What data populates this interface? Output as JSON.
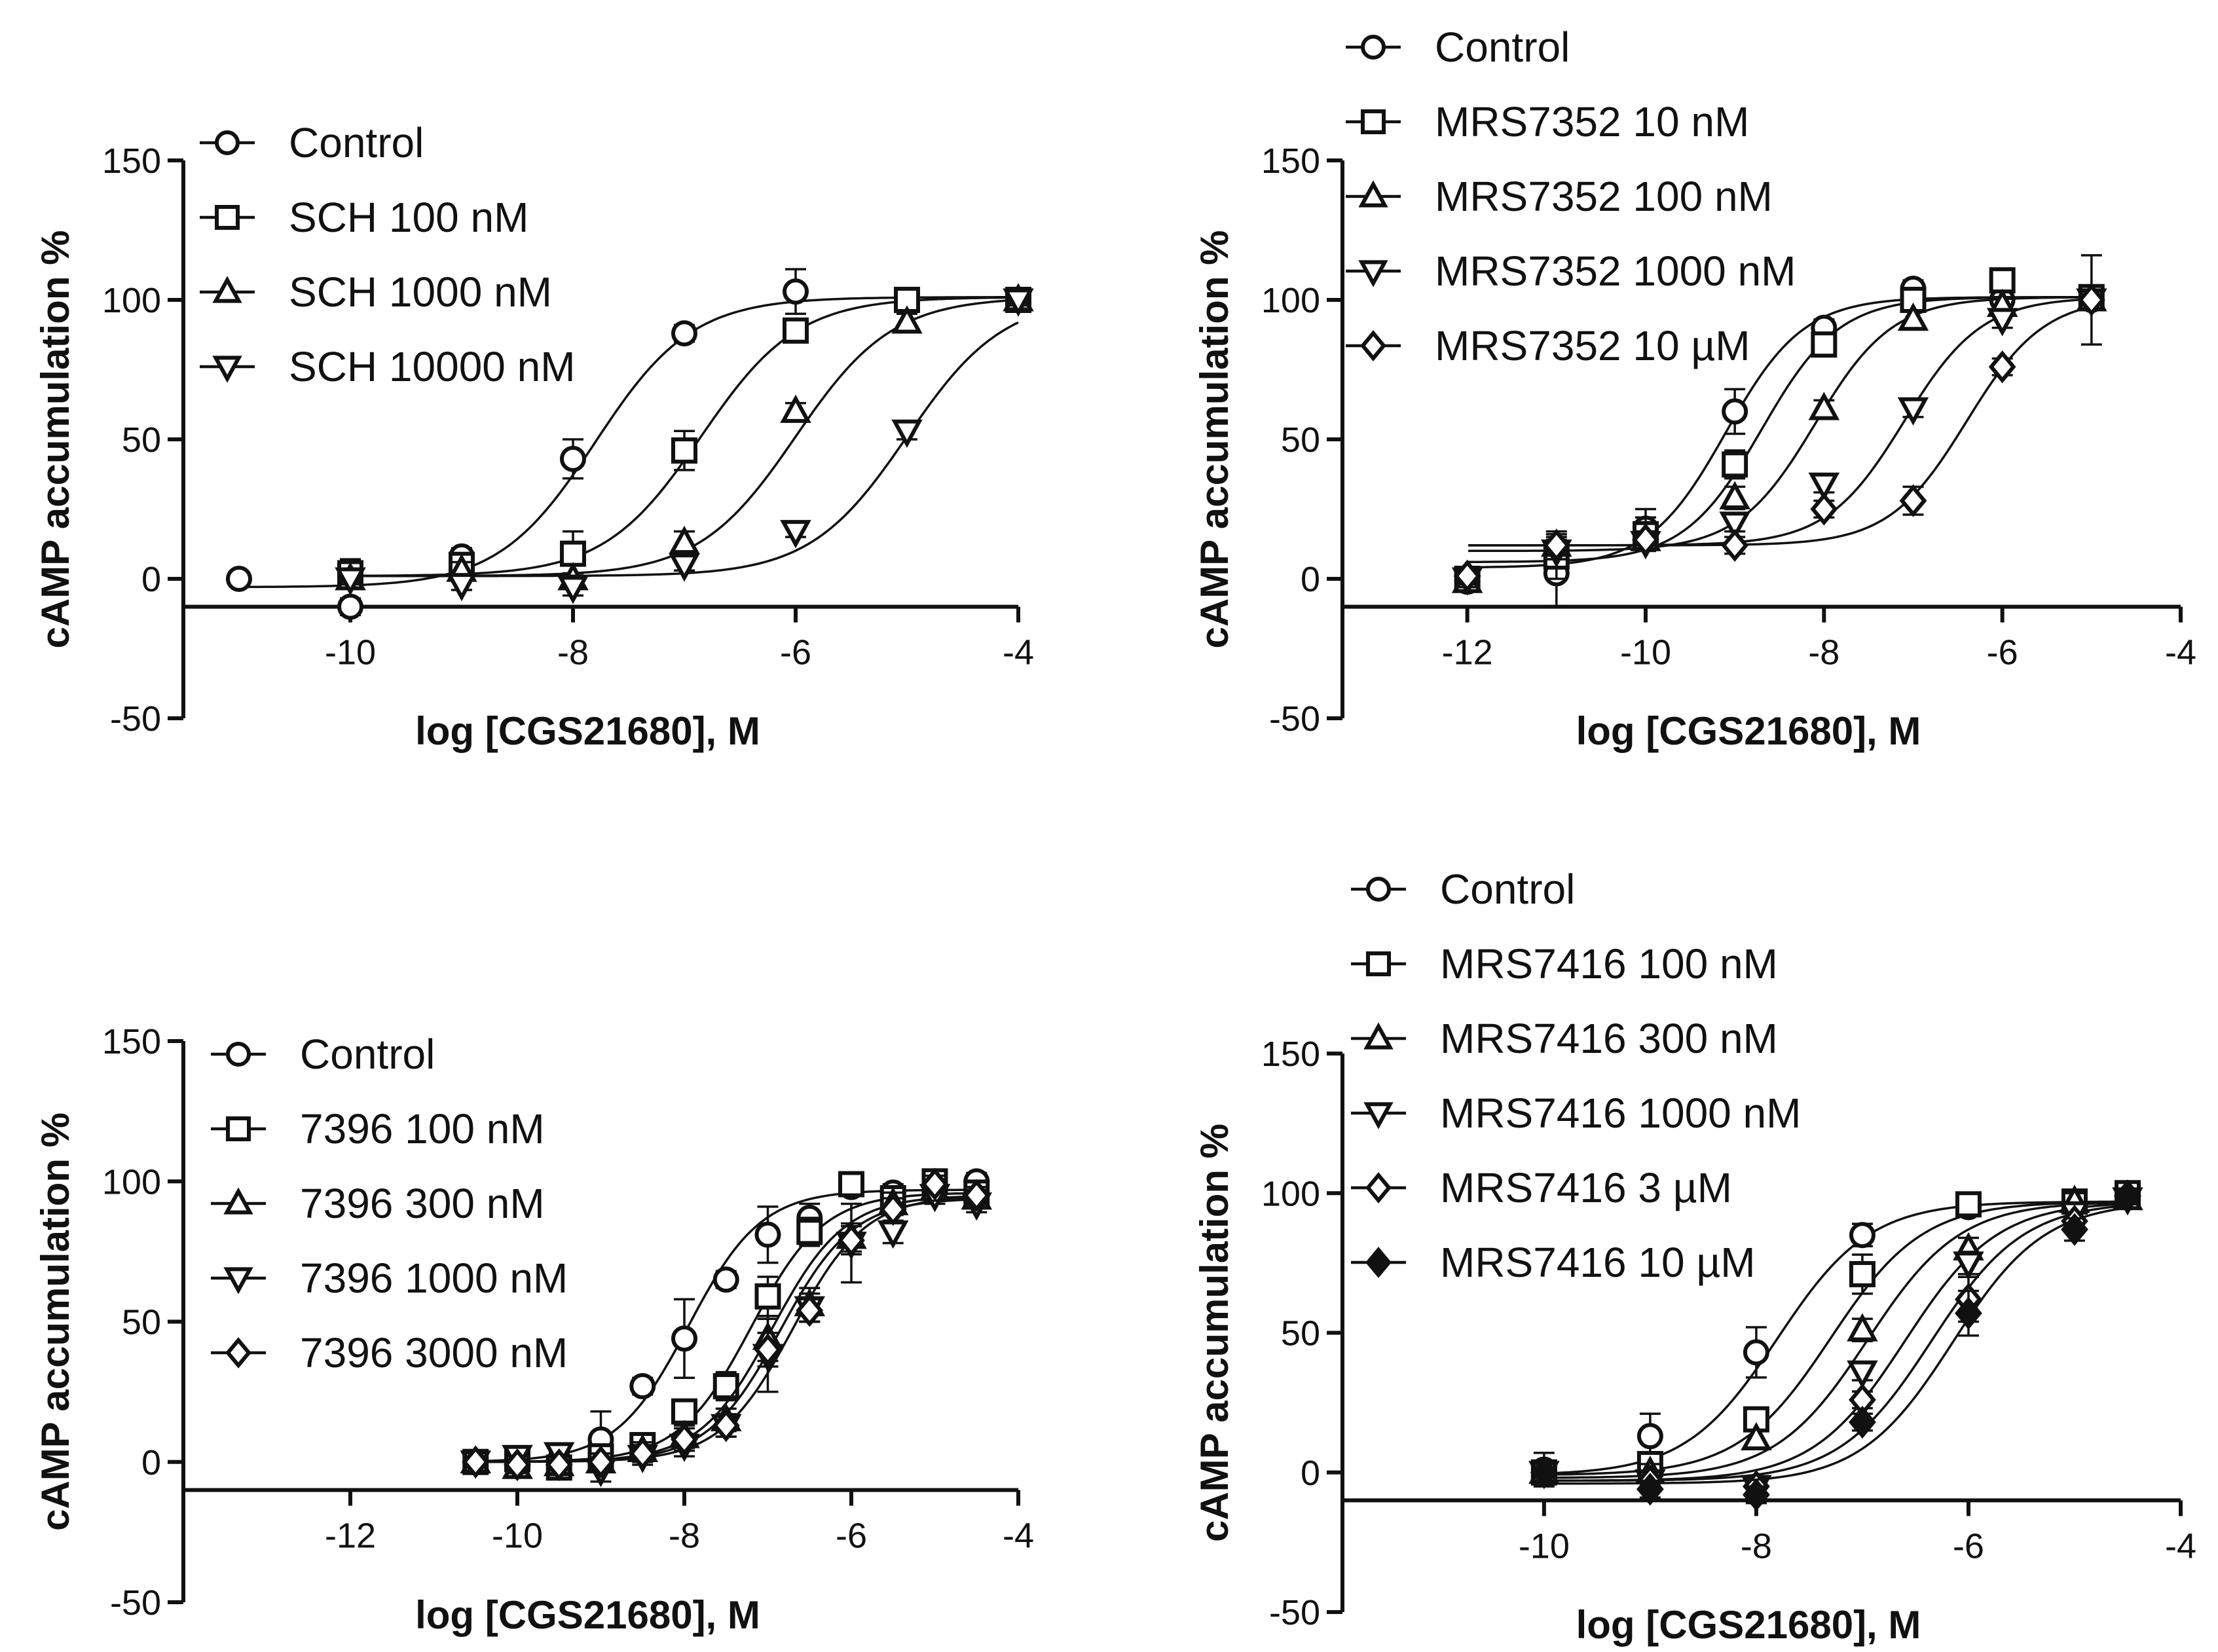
{
  "chart_data": [
    {
      "type": "line",
      "panel": "top-left",
      "xlabel": "log [CGS21680], M",
      "ylabel": "cAMP accumulation %",
      "xlim": [
        -11.5,
        -4
      ],
      "ylim": [
        -50,
        150
      ],
      "xticks": [
        -10,
        -8,
        -6,
        -4
      ],
      "yticks": [
        -50,
        0,
        50,
        100,
        150
      ],
      "xticks_labels": [
        "-10",
        "-8",
        "-6",
        "-4"
      ],
      "yticks_labels": [
        "-50",
        "0",
        "50",
        "100",
        "150"
      ],
      "legend_placement": "top-left",
      "series": [
        {
          "name": "Control",
          "marker": "circle",
          "logEC50": -7.8,
          "bottom": -3,
          "top": 101,
          "x": [
            -11,
            -10,
            -9,
            -8,
            -7,
            -6,
            -5,
            -4
          ],
          "y": [
            0,
            -10,
            8,
            43,
            88,
            103,
            100,
            100
          ],
          "err": [
            0,
            3,
            3,
            7,
            3,
            8,
            3,
            2
          ]
        },
        {
          "name": "SCH 100 nM",
          "marker": "square",
          "logEC50": -6.85,
          "bottom": 1,
          "top": 101,
          "x": [
            -10,
            -9,
            -8,
            -7,
            -6,
            -5,
            -4
          ],
          "y": [
            2,
            5,
            9,
            46,
            89,
            100,
            100
          ],
          "err": [
            5,
            4,
            8,
            7,
            3,
            2,
            2
          ]
        },
        {
          "name": "SCH 1000 nM",
          "marker": "triangle-up",
          "logEC50": -6.0,
          "bottom": 1,
          "top": 101,
          "x": [
            -10,
            -9,
            -8,
            -7,
            -6,
            -5,
            -4
          ],
          "y": [
            0,
            3,
            0,
            13,
            60,
            92,
            100
          ],
          "err": [
            3,
            3,
            2,
            4,
            3,
            3,
            2
          ]
        },
        {
          "name": "SCH 10000 nM",
          "marker": "triangle-down",
          "logEC50": -5.0,
          "bottom": 1,
          "top": 101,
          "x": [
            -10,
            -9,
            -8,
            -7,
            -6,
            -5,
            -4
          ],
          "y": [
            0,
            -2,
            -3,
            5,
            17,
            53,
            100
          ],
          "err": [
            2,
            2,
            3,
            2,
            2,
            3,
            2
          ]
        }
      ]
    },
    {
      "type": "line",
      "panel": "top-right",
      "xlabel": "log [CGS21680], M",
      "ylabel": "cAMP accumulation %",
      "xlim": [
        -13.4,
        -4
      ],
      "ylim": [
        -50,
        150
      ],
      "xticks": [
        -12,
        -10,
        -8,
        -6,
        -4
      ],
      "yticks": [
        -50,
        0,
        50,
        100,
        150
      ],
      "xticks_labels": [
        "-12",
        "-10",
        "-8",
        "-6",
        "-4"
      ],
      "yticks_labels": [
        "-50",
        "0",
        "50",
        "100",
        "150"
      ],
      "legend_placement": "top-left",
      "series": [
        {
          "name": "Control",
          "marker": "circle",
          "logEC50": -9.1,
          "bottom": 4,
          "top": 101,
          "x": [
            -12,
            -11,
            -10,
            -9,
            -8,
            -7,
            -6,
            -5
          ],
          "y": [
            -1,
            2,
            18,
            60,
            90,
            104,
            100,
            100
          ],
          "err": [
            3,
            12,
            7,
            8,
            3,
            3,
            3,
            16
          ]
        },
        {
          "name": "MRS7352 10 nM",
          "marker": "square",
          "logEC50": -8.7,
          "bottom": 6,
          "top": 101,
          "x": [
            -12,
            -11,
            -10,
            -9,
            -8,
            -7,
            -6,
            -5
          ],
          "y": [
            0,
            8,
            16,
            41,
            84,
            100,
            107,
            101
          ],
          "err": [
            3,
            8,
            6,
            5,
            3,
            3,
            3,
            3
          ]
        },
        {
          "name": "MRS7352 100 nM",
          "marker": "triangle-up",
          "logEC50": -8.1,
          "bottom": 10,
          "top": 101,
          "x": [
            -12,
            -11,
            -10,
            -9,
            -8,
            -7,
            -6,
            -5
          ],
          "y": [
            -1,
            12,
            14,
            29,
            61,
            93,
            98,
            100
          ],
          "err": [
            3,
            5,
            3,
            4,
            3,
            3,
            3,
            3
          ]
        },
        {
          "name": "MRS7352 1000 nM",
          "marker": "triangle-down",
          "logEC50": -7.1,
          "bottom": 12,
          "top": 101,
          "x": [
            -12,
            -11,
            -10,
            -9,
            -8,
            -7,
            -6,
            -5
          ],
          "y": [
            0,
            10,
            13,
            20,
            34,
            61,
            93,
            100
          ],
          "err": [
            3,
            3,
            3,
            3,
            3,
            3,
            3,
            3
          ]
        },
        {
          "name": "MRS7352 10 µM",
          "marker": "diamond",
          "logEC50": -6.4,
          "bottom": 12,
          "top": 101,
          "x": [
            -12,
            -11,
            -10,
            -9,
            -8,
            -7,
            -6,
            -5
          ],
          "y": [
            1,
            12,
            14,
            12,
            25,
            28,
            76,
            100
          ],
          "err": [
            3,
            3,
            3,
            3,
            3,
            5,
            3,
            3
          ]
        }
      ]
    },
    {
      "type": "line",
      "panel": "bottom-left",
      "xlabel": "log [CGS21680], M",
      "ylabel": "cAMP accumulation %",
      "xlim": [
        -14,
        -4
      ],
      "ylim": [
        -50,
        150
      ],
      "xticks": [
        -12,
        -10,
        -8,
        -6,
        -4
      ],
      "yticks": [
        -50,
        0,
        50,
        100,
        150
      ],
      "xticks_labels": [
        "-12",
        "-10",
        "-8",
        "-6",
        "-4"
      ],
      "yticks_labels": [
        "-50",
        "0",
        "50",
        "100",
        "150"
      ],
      "legend_placement": "top-left",
      "series": [
        {
          "name": "Control",
          "marker": "circle",
          "logEC50": -7.95,
          "bottom": 0,
          "top": 97,
          "x": [
            -10.5,
            -10,
            -9.5,
            -9,
            -8.5,
            -8,
            -7.5,
            -7,
            -6.5,
            -6,
            -5.5,
            -5,
            -4.5
          ],
          "y": [
            0,
            0,
            0,
            8,
            27,
            44,
            65,
            81,
            87,
            98,
            96,
            98,
            100
          ],
          "err": [
            2,
            3,
            3,
            10,
            3,
            14,
            3,
            10,
            5,
            3,
            3,
            3,
            3
          ]
        },
        {
          "name": "7396 100 nM",
          "marker": "square",
          "logEC50": -7.2,
          "bottom": 0,
          "top": 96,
          "x": [
            -10.5,
            -10,
            -9.5,
            -9,
            -8.5,
            -8,
            -7.5,
            -7,
            -6.5,
            -6,
            -5.5,
            -5,
            -4.5
          ],
          "y": [
            0,
            1,
            -2,
            2,
            6,
            18,
            27,
            59,
            82,
            99,
            94,
            100,
            96
          ],
          "err": [
            2,
            3,
            3,
            3,
            3,
            4,
            5,
            7,
            5,
            3,
            3,
            3,
            3
          ]
        },
        {
          "name": "7396 300 nM",
          "marker": "triangle-up",
          "logEC50": -6.95,
          "bottom": 0,
          "top": 95,
          "x": [
            -10.5,
            -10,
            -9.5,
            -9,
            -8.5,
            -8,
            -7.5,
            -7,
            -6.5,
            -6,
            -5.5,
            -5,
            -4.5
          ],
          "y": [
            0,
            -2,
            -1,
            0,
            4,
            9,
            15,
            44,
            56,
            80,
            92,
            97,
            94
          ],
          "err": [
            2,
            3,
            3,
            3,
            3,
            4,
            4,
            8,
            6,
            5,
            4,
            3,
            3
          ]
        },
        {
          "name": "7396 1000 nM",
          "marker": "triangle-down",
          "logEC50": -6.85,
          "bottom": 0,
          "top": 94,
          "x": [
            -10.5,
            -10,
            -9.5,
            -9,
            -8.5,
            -8,
            -7.5,
            -7,
            -6.5,
            -6,
            -5.5,
            -5,
            -4.5
          ],
          "y": [
            0,
            2,
            3,
            -3,
            2,
            6,
            13,
            38,
            55,
            78,
            82,
            95,
            92
          ],
          "err": [
            2,
            3,
            3,
            4,
            3,
            4,
            4,
            13,
            5,
            14,
            4,
            3,
            3
          ]
        },
        {
          "name": "7396 3000  nM",
          "marker": "diamond",
          "logEC50": -6.7,
          "bottom": 0,
          "top": 95,
          "x": [
            -10.5,
            -10,
            -9.5,
            -9,
            -8.5,
            -8,
            -7.5,
            -7,
            -6.5,
            -6,
            -5.5,
            -5,
            -4.5
          ],
          "y": [
            0,
            -1,
            -1,
            0,
            3,
            8,
            13,
            40,
            54,
            79,
            90,
            99,
            95
          ],
          "err": [
            2,
            3,
            3,
            3,
            3,
            4,
            4,
            6,
            4,
            5,
            4,
            3,
            3
          ]
        }
      ]
    },
    {
      "type": "line",
      "panel": "bottom-right",
      "xlabel": "log [CGS21680], M",
      "ylabel": "cAMP accumulation %",
      "xlim": [
        -11.9,
        -4
      ],
      "ylim": [
        -50,
        150
      ],
      "xticks": [
        -10,
        -8,
        -6,
        -4
      ],
      "yticks": [
        -50,
        0,
        50,
        100,
        150
      ],
      "xticks_labels": [
        "-10",
        "-8",
        "-6",
        "-4"
      ],
      "yticks_labels": [
        "-50",
        "0",
        "50",
        "100",
        "150"
      ],
      "legend_placement": "top-left",
      "series": [
        {
          "name": "Control",
          "marker": "circle",
          "logEC50": -7.8,
          "bottom": -1,
          "top": 97,
          "x": [
            -10,
            -9,
            -8,
            -7,
            -6,
            -5,
            -4.5
          ],
          "y": [
            1,
            13,
            43,
            85,
            95,
            97,
            100
          ],
          "err": [
            6,
            8,
            9,
            4,
            3,
            3,
            2
          ]
        },
        {
          "name": "MRS7416 100 nM",
          "marker": "square",
          "logEC50": -7.3,
          "bottom": -1,
          "top": 97,
          "x": [
            -10,
            -9,
            -8,
            -7,
            -6,
            -5,
            -4.5
          ],
          "y": [
            0,
            3,
            19,
            71,
            96,
            97,
            100
          ],
          "err": [
            4,
            4,
            4,
            7,
            3,
            3,
            2
          ]
        },
        {
          "name": "MRS7416 300 nM",
          "marker": "triangle-up",
          "logEC50": -6.95,
          "bottom": -2,
          "top": 97,
          "x": [
            -10,
            -9,
            -8,
            -7,
            -6,
            -5,
            -4.5
          ],
          "y": [
            0,
            0,
            12,
            51,
            80,
            97,
            98
          ],
          "err": [
            3,
            3,
            3,
            4,
            4,
            3,
            2
          ]
        },
        {
          "name": "MRS7416 1000 nM",
          "marker": "triangle-down",
          "logEC50": -6.6,
          "bottom": -3,
          "top": 97,
          "x": [
            -10,
            -9,
            -8,
            -7,
            -6,
            -5,
            -4.5
          ],
          "y": [
            0,
            -3,
            -5,
            36,
            75,
            93,
            98
          ],
          "err": [
            3,
            3,
            3,
            3,
            4,
            3,
            2
          ]
        },
        {
          "name": "MRS7416 3 µM",
          "marker": "diamond",
          "logEC50": -6.35,
          "bottom": -3,
          "top": 97,
          "x": [
            -10,
            -9,
            -8,
            -7,
            -6,
            -5,
            -4.5
          ],
          "y": [
            0,
            -3,
            -5,
            26,
            62,
            90,
            99
          ],
          "err": [
            3,
            3,
            3,
            3,
            8,
            3,
            2
          ]
        },
        {
          "name": "MRS7416 10 µM",
          "marker": "diamond-filled",
          "logEC50": -6.15,
          "bottom": -4,
          "top": 97,
          "x": [
            -10,
            -9,
            -8,
            -7,
            -6,
            -5,
            -4.5
          ],
          "y": [
            0,
            -6,
            -8,
            18,
            57,
            87,
            99
          ],
          "err": [
            3,
            3,
            3,
            3,
            8,
            4,
            2
          ]
        }
      ]
    }
  ]
}
